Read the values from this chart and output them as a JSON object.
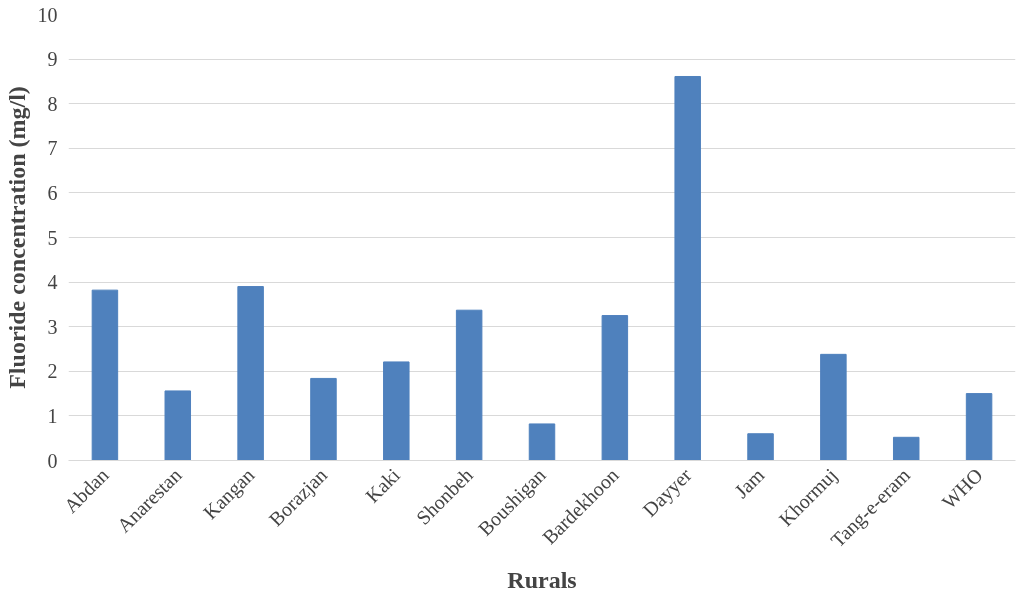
{
  "chart_data": {
    "type": "bar",
    "xlabel": "Rurals",
    "ylabel": "Fluoride concentration (mg/l)",
    "categories": [
      "Abdan",
      "Anarestan",
      "Kangan",
      "Borazjan",
      "Kaki",
      "Shonbeh",
      "Boushigan",
      "Bardekhoon",
      "Dayyer",
      "Jam",
      "Khormuj",
      "Tang-e-eram",
      "WHO"
    ],
    "values": [
      3.82,
      1.56,
      3.9,
      1.84,
      2.21,
      3.37,
      0.82,
      3.25,
      8.61,
      0.6,
      2.38,
      0.52,
      1.5
    ],
    "color": "#4f81bd",
    "ylim": [
      0,
      10
    ],
    "yticks": [
      0,
      1,
      2,
      3,
      4,
      5,
      6,
      7,
      8,
      9,
      10
    ],
    "grid": "y"
  }
}
